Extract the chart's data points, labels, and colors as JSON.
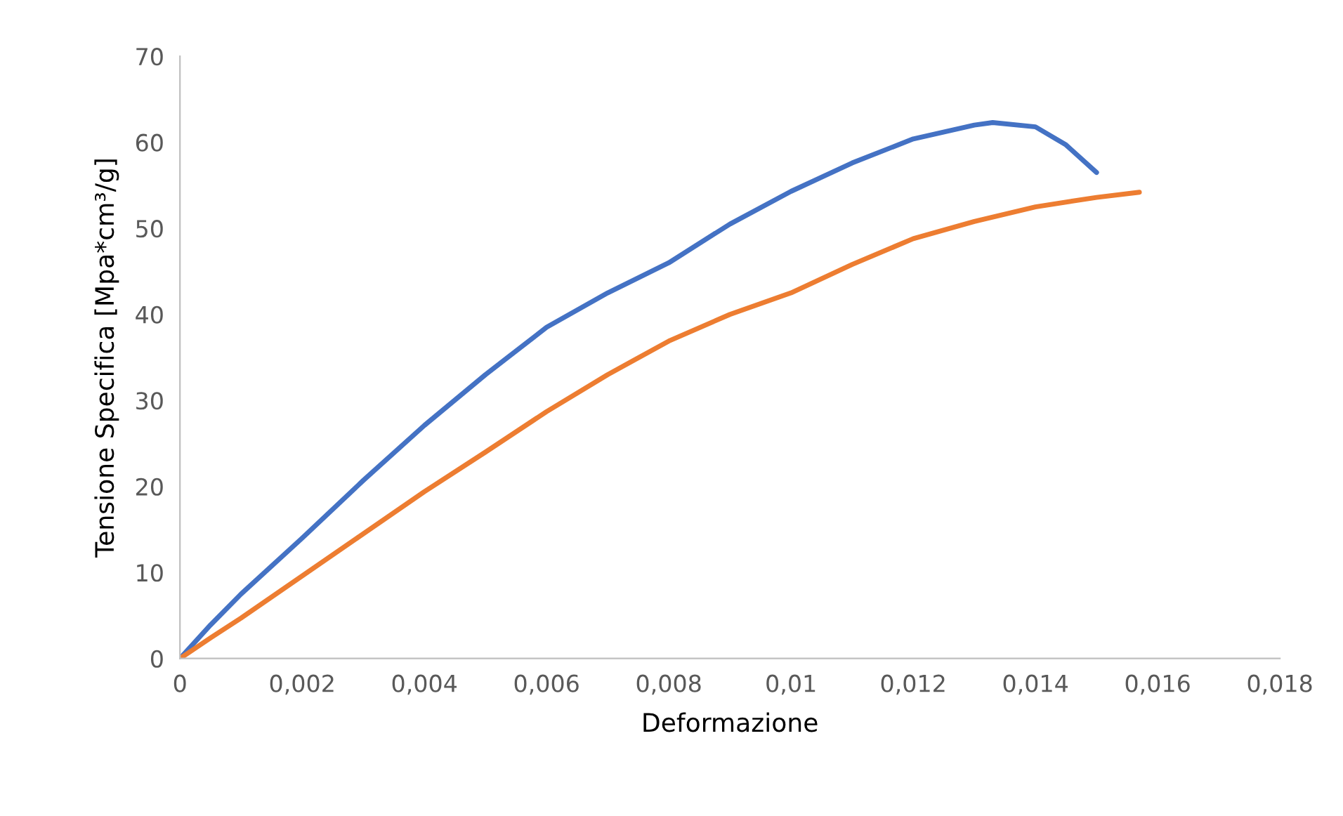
{
  "chart_data": {
    "type": "line",
    "xlabel": "Deformazione",
    "ylabel": "Tensione Specifica [Mpa*cm³/g]",
    "xlim": [
      0,
      0.018
    ],
    "ylim": [
      0,
      70
    ],
    "xticks": [
      0,
      {
        "value": 0.002,
        "label": "0,002"
      },
      {
        "value": 0.004,
        "label": "0,004"
      },
      {
        "value": 0.006,
        "label": "0,006"
      },
      {
        "value": 0.008,
        "label": "0,008"
      },
      {
        "value": 0.01,
        "label": "0,01"
      },
      {
        "value": 0.012,
        "label": "0,012"
      },
      {
        "value": 0.014,
        "label": "0,014"
      },
      {
        "value": 0.016,
        "label": "0,016"
      },
      {
        "value": 0.018,
        "label": "0,018"
      }
    ],
    "yticks": [
      0,
      10,
      20,
      30,
      40,
      50,
      60,
      70
    ],
    "grid": false,
    "legend": false,
    "marker": "none",
    "line_style": "solid",
    "series": [
      {
        "color": "#4472c4",
        "x": [
          0,
          0.0005,
          0.001,
          0.002,
          0.003,
          0.004,
          0.005,
          0.006,
          0.007,
          0.008,
          0.009,
          0.01,
          0.011,
          0.012,
          0.013,
          0.0133,
          0.014,
          0.0145,
          0.015
        ],
        "values": [
          0,
          3.9,
          7.5,
          14,
          20.7,
          27.1,
          33,
          38.5,
          42.5,
          46,
          50.5,
          54.3,
          57.6,
          60.4,
          62,
          62.3,
          61.8,
          59.7,
          56.5
        ]
      },
      {
        "color": "#ed7d31",
        "x": [
          0,
          0.0005,
          0.001,
          0.002,
          0.003,
          0.004,
          0.005,
          0.006,
          0.007,
          0.008,
          0.009,
          0.01,
          0.011,
          0.012,
          0.013,
          0.014,
          0.015,
          0.0157
        ],
        "values": [
          0,
          2.4,
          4.7,
          9.6,
          14.5,
          19.4,
          24,
          28.7,
          33,
          36.9,
          40,
          42.5,
          45.8,
          48.8,
          50.8,
          52.5,
          53.6,
          54.2
        ]
      }
    ]
  }
}
